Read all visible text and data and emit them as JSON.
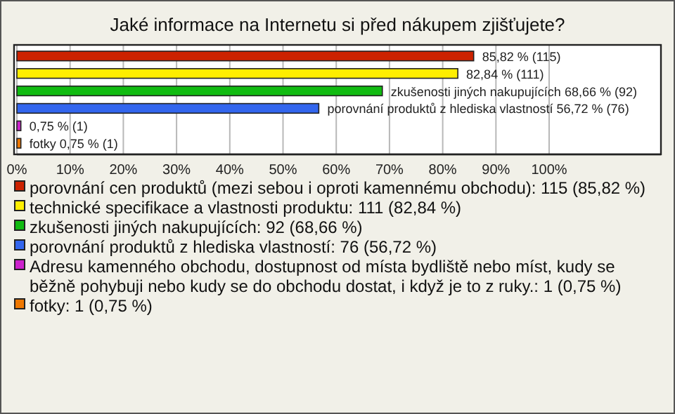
{
  "chart_data": {
    "type": "bar",
    "orientation": "horizontal",
    "title": "Jaké informace na Internetu si před nákupem zjišťujete?",
    "categories": [
      null,
      null,
      null,
      null,
      null,
      null
    ],
    "series": [
      {
        "name": "porovnání cen produktů (mezi sebou i oproti kamennému obchodu): 115 (85,82 %)",
        "color": "#cc2200",
        "values": [
          85.82,
          null,
          null,
          null,
          null,
          null
        ],
        "value_labels": [
          "85,82 % (115)",
          null,
          null,
          null,
          null,
          null
        ]
      },
      {
        "name": "technické specifikace a vlastnosti produktu: 111 (82,84 %)",
        "color": "#ffee00",
        "values": [
          null,
          82.84,
          null,
          null,
          null,
          null
        ],
        "value_labels": [
          null,
          "82,84 % (111)",
          null,
          null,
          null,
          null
        ]
      },
      {
        "name": "zkušenosti jiných nakupujících: 92 (68,66 %)",
        "color": "#11bb11",
        "values": [
          null,
          null,
          68.66,
          null,
          null,
          null
        ],
        "value_labels": [
          null,
          null,
          "zkušenosti jiných nakupujících 68,66 % (92)",
          null,
          null,
          null
        ]
      },
      {
        "name": "porovnání produktů z hlediska vlastností: 76 (56,72 %)",
        "color": "#3366ee",
        "values": [
          null,
          null,
          null,
          56.72,
          null,
          null
        ],
        "value_labels": [
          null,
          null,
          null,
          "porovnání produktů z hlediska vlastností 56,72 % (76)",
          null,
          null
        ]
      },
      {
        "name": "Adresu kamenného obchodu, dostupnost od místa bydliště nebo míst, kudy se běžně pohybuji nebo kudy se do obchodu dostat, i když je to z ruky.: 1 (0,75 %)",
        "color": "#cc22cc",
        "values": [
          null,
          null,
          null,
          null,
          0.75,
          null
        ],
        "value_labels": [
          null,
          null,
          null,
          null,
          "0,75 % (1)",
          null
        ]
      },
      {
        "name": "fotky: 1 (0,75 %)",
        "color": "#ee7700",
        "values": [
          null,
          null,
          null,
          null,
          null,
          0.75
        ],
        "value_labels": [
          null,
          null,
          null,
          null,
          null,
          "fotky 0,75 % (1)"
        ]
      }
    ],
    "xlim": [
      0,
      121
    ],
    "xticks": [
      {
        "value": 0,
        "label": "0%"
      },
      {
        "value": 10,
        "label": "10%"
      },
      {
        "value": 20,
        "label": "20%"
      },
      {
        "value": 30,
        "label": "30%"
      },
      {
        "value": 40,
        "label": "40%"
      },
      {
        "value": 50,
        "label": "50%"
      },
      {
        "value": 60,
        "label": "60%"
      },
      {
        "value": 70,
        "label": "70%"
      },
      {
        "value": 80,
        "label": "80%"
      },
      {
        "value": 90,
        "label": "90%"
      },
      {
        "value": 100,
        "label": "100%"
      }
    ],
    "grid": "x",
    "legend": "bottom",
    "tick_labels": "x"
  }
}
